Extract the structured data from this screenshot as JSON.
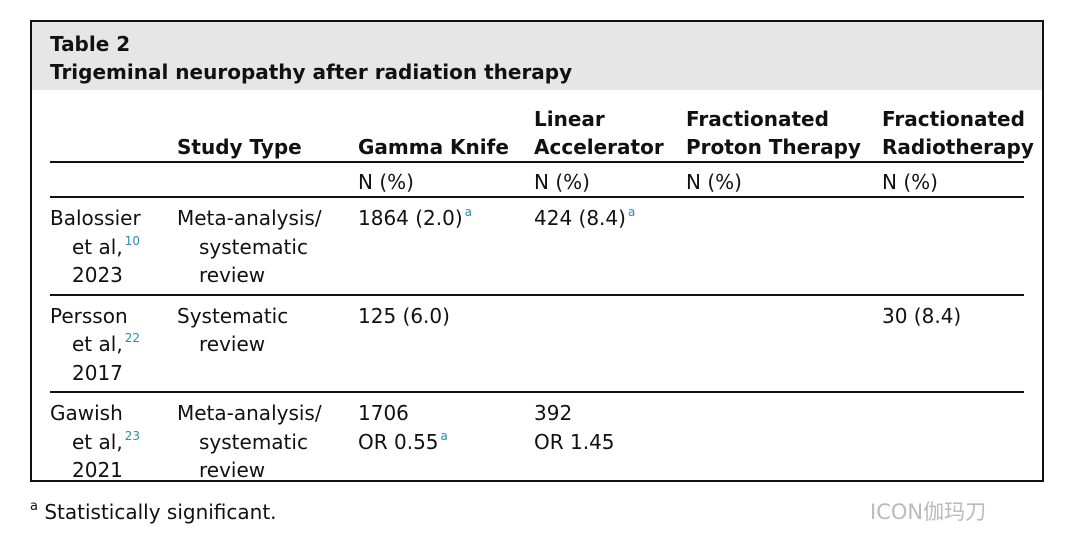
{
  "table": {
    "label": "Table 2",
    "title": "Trigeminal neuropathy after radiation therapy",
    "headers": [
      null,
      [
        "Study Type"
      ],
      [
        "Gamma Knife"
      ],
      [
        "Linear",
        "Accelerator"
      ],
      [
        "Fractionated",
        "Proton Therapy"
      ],
      [
        "Fractionated",
        "Radiotherapy"
      ]
    ],
    "units": [
      null,
      null,
      "N (%)",
      "N (%)",
      "N (%)",
      "N (%)"
    ],
    "rows": [
      [
        [
          {
            "text": "Balossier"
          },
          {
            "text": "et al,",
            "sup": "10"
          },
          {
            "text": "2023"
          }
        ],
        [
          {
            "text": "Meta-analysis/"
          },
          {
            "text": "systematic"
          },
          {
            "text": "review"
          }
        ],
        [
          {
            "text": "1864 (2.0)",
            "sup": "a"
          }
        ],
        [
          {
            "text": "424 (8.4)",
            "sup": "a"
          }
        ],
        null,
        null
      ],
      [
        [
          {
            "text": "Persson"
          },
          {
            "text": "et al,",
            "sup": "22"
          },
          {
            "text": "2017"
          }
        ],
        [
          {
            "text": "Systematic"
          },
          {
            "text": "review"
          }
        ],
        [
          {
            "text": "125 (6.0)"
          }
        ],
        null,
        null,
        [
          {
            "text": "30 (8.4)"
          }
        ]
      ],
      [
        [
          {
            "text": "Gawish"
          },
          {
            "text": "et al,",
            "sup": "23"
          },
          {
            "text": "2021"
          }
        ],
        [
          {
            "text": "Meta-analysis/"
          },
          {
            "text": "systematic"
          },
          {
            "text": "review"
          }
        ],
        [
          {
            "text": "1706"
          },
          {
            "text": "OR 0.55",
            "sup": "a"
          }
        ],
        [
          {
            "text": "392"
          },
          {
            "text": "OR 1.45"
          }
        ],
        null,
        null
      ]
    ]
  },
  "footnote": {
    "mark": "a",
    "text": "Statistically significant."
  },
  "watermark": "ICON伽玛刀"
}
